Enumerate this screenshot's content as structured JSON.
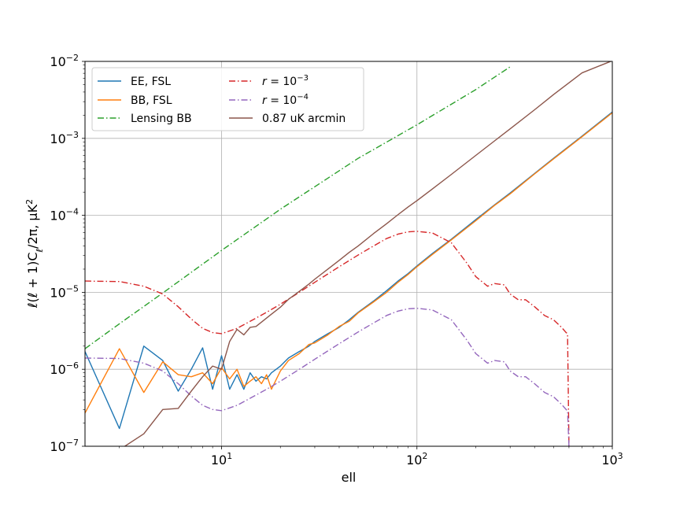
{
  "chart_data": {
    "type": "line",
    "title": "",
    "xlabel": "ell",
    "ylabel": "ℓ(ℓ + 1)C_ℓ/2π, μK²",
    "xscale": "log",
    "yscale": "log",
    "xlim": [
      2,
      1000
    ],
    "ylim": [
      1e-07,
      0.01
    ],
    "grid": true,
    "legend_placement": "upper-left",
    "x_ticks": [
      {
        "value": 10,
        "base": "10",
        "exp": "1"
      },
      {
        "value": 100,
        "base": "10",
        "exp": "2"
      },
      {
        "value": 1000,
        "base": "10",
        "exp": "3"
      }
    ],
    "y_ticks": [
      {
        "value": 1e-07,
        "base": "10",
        "exp": "−7"
      },
      {
        "value": 1e-06,
        "base": "10",
        "exp": "−6"
      },
      {
        "value": 1e-05,
        "base": "10",
        "exp": "−5"
      },
      {
        "value": 0.0001,
        "base": "10",
        "exp": "−4"
      },
      {
        "value": 0.001,
        "base": "10",
        "exp": "−3"
      },
      {
        "value": 0.01,
        "base": "10",
        "exp": "−2"
      }
    ],
    "series": [
      {
        "name": "EE, FSL",
        "color": "#1f77b4",
        "style": "solid",
        "legend_col": 0,
        "x": [
          2,
          3,
          4,
          5,
          6,
          7,
          8,
          9,
          10,
          11,
          12,
          13,
          14,
          15,
          16,
          17,
          18,
          20,
          22,
          25,
          28,
          30,
          35,
          40,
          45,
          50,
          60,
          70,
          80,
          90,
          100,
          120,
          150,
          200,
          250,
          300,
          400,
          500,
          700,
          1000
        ],
        "y": [
          1.7e-06,
          1.7e-07,
          2e-06,
          1.3e-06,
          5.2e-07,
          1e-06,
          1.9e-06,
          5.5e-07,
          1.5e-06,
          5.5e-07,
          8.5e-07,
          5.5e-07,
          9e-07,
          7e-07,
          8e-07,
          7.5e-07,
          9e-07,
          1.1e-06,
          1.4e-06,
          1.7e-06,
          2e-06,
          2.3e-06,
          2.9e-06,
          3.5e-06,
          4.4e-06,
          5.5e-06,
          7.7e-06,
          1.05e-05,
          1.4e-05,
          1.75e-05,
          2.2e-05,
          3.2e-05,
          4.9e-05,
          8.8e-05,
          0.000137,
          0.000195,
          0.00035,
          0.00055,
          0.00107,
          0.0022
        ]
      },
      {
        "name": "BB, FSL",
        "color": "#ff7f0e",
        "style": "solid",
        "legend_col": 0,
        "x": [
          2,
          3,
          4,
          5,
          6,
          7,
          8,
          9,
          10,
          11,
          12,
          13,
          14,
          15,
          16,
          17,
          18,
          20,
          22,
          25,
          28,
          30,
          35,
          40,
          45,
          50,
          60,
          70,
          80,
          90,
          100,
          120,
          150,
          200,
          250,
          300,
          400,
          500,
          700,
          1000
        ],
        "y": [
          2.7e-07,
          1.85e-06,
          5e-07,
          1.25e-06,
          8.5e-07,
          8e-07,
          9e-07,
          6.5e-07,
          1.05e-06,
          7.5e-07,
          1e-06,
          6e-07,
          7e-07,
          8e-07,
          6.5e-07,
          8.5e-07,
          5.5e-07,
          9.5e-07,
          1.3e-06,
          1.6e-06,
          2.1e-06,
          2.2e-06,
          2.8e-06,
          3.6e-06,
          4.2e-06,
          5.4e-06,
          7.5e-06,
          1e-05,
          1.35e-05,
          1.7e-05,
          2.15e-05,
          3.1e-05,
          4.8e-05,
          8.5e-05,
          0.000135,
          0.00019,
          0.000345,
          0.00054,
          0.00105,
          0.00215
        ]
      },
      {
        "name": "Lensing BB",
        "color": "#2ca02c",
        "style": "dashdot",
        "legend_col": 0,
        "x": [
          2,
          3,
          5,
          10,
          20,
          50,
          100,
          200,
          300
        ],
        "y": [
          1.85e-06,
          3.9e-06,
          9.8e-06,
          3.5e-05,
          0.00012,
          0.00055,
          0.0015,
          0.0043,
          0.0085
        ]
      },
      {
        "name": "r = 10^{-3}",
        "label_base": "r = 10",
        "label_exp": "−3",
        "color": "#d62728",
        "style": "dashdot",
        "legend_col": 1,
        "x": [
          2,
          3,
          4,
          5,
          6,
          7,
          8,
          9,
          10,
          12,
          14,
          17,
          20,
          25,
          30,
          40,
          50,
          60,
          70,
          80,
          90,
          100,
          120,
          150,
          180,
          200,
          230,
          250,
          280,
          300,
          330,
          360,
          400,
          450,
          500,
          550,
          580,
          590,
          600
        ],
        "y": [
          1.4e-05,
          1.38e-05,
          1.2e-05,
          9.5e-06,
          6.5e-06,
          4.5e-06,
          3.4e-06,
          3e-06,
          2.9e-06,
          3.4e-06,
          4.2e-06,
          5.5e-06,
          7e-06,
          1e-05,
          1.35e-05,
          2.15e-05,
          3.05e-05,
          4e-05,
          5e-05,
          5.7e-05,
          6.1e-05,
          6.2e-05,
          5.9e-05,
          4.4e-05,
          2.4e-05,
          1.6e-05,
          1.2e-05,
          1.3e-05,
          1.25e-05,
          9.5e-06,
          8e-06,
          8e-06,
          6.5e-06,
          5e-06,
          4.4e-06,
          3.5e-06,
          3e-06,
          2.9e-06,
          1e-07
        ]
      },
      {
        "name": "r = 10^{-4}",
        "label_base": "r = 10",
        "label_exp": "−4",
        "color": "#9467bd",
        "style": "dashdot",
        "legend_col": 1,
        "x": [
          2,
          3,
          4,
          5,
          6,
          7,
          8,
          9,
          10,
          12,
          14,
          17,
          20,
          25,
          30,
          40,
          50,
          60,
          70,
          80,
          90,
          100,
          120,
          150,
          180,
          200,
          230,
          250,
          280,
          300,
          330,
          360,
          400,
          450,
          500,
          550,
          580,
          590,
          600
        ],
        "y": [
          1.4e-06,
          1.38e-06,
          1.2e-06,
          9.5e-07,
          6.5e-07,
          4.5e-07,
          3.4e-07,
          3e-07,
          2.9e-07,
          3.4e-07,
          4.2e-07,
          5.5e-07,
          7e-07,
          1e-06,
          1.35e-06,
          2.15e-06,
          3.05e-06,
          4e-06,
          5e-06,
          5.7e-06,
          6.1e-06,
          6.2e-06,
          5.9e-06,
          4.4e-06,
          2.4e-06,
          1.6e-06,
          1.2e-06,
          1.3e-06,
          1.25e-06,
          9.5e-07,
          8e-07,
          8e-07,
          6.5e-07,
          5e-07,
          4.4e-07,
          3.5e-07,
          3e-07,
          2.9e-07,
          1e-07
        ]
      },
      {
        "name": "0.87 uK arcmin",
        "color": "#8c564b",
        "style": "solid",
        "legend_col": 1,
        "x": [
          2,
          3,
          4,
          5,
          6,
          7,
          8,
          9,
          10,
          11,
          12,
          13,
          14,
          15,
          16,
          18,
          20,
          22,
          25,
          28,
          30,
          35,
          40,
          45,
          50,
          60,
          70,
          80,
          90,
          100,
          120,
          150,
          200,
          250,
          300,
          400,
          500,
          700,
          1000
        ],
        "y": [
          6e-08,
          9e-08,
          1.45e-07,
          3e-07,
          3.1e-07,
          5.2e-07,
          8e-07,
          1.1e-06,
          1e-06,
          2.3e-06,
          3.3e-06,
          2.8e-06,
          3.5e-06,
          3.6e-06,
          4.1e-06,
          5.2e-06,
          6.4e-06,
          8.1e-06,
          1.03e-05,
          1.28e-05,
          1.48e-05,
          2e-05,
          2.6e-05,
          3.3e-05,
          4e-05,
          5.8e-05,
          7.8e-05,
          0.000102,
          0.000128,
          0.000155,
          0.00022,
          0.00034,
          0.0006,
          0.00093,
          0.00133,
          0.00235,
          0.0037,
          0.0071,
          0.0102
        ]
      }
    ]
  }
}
